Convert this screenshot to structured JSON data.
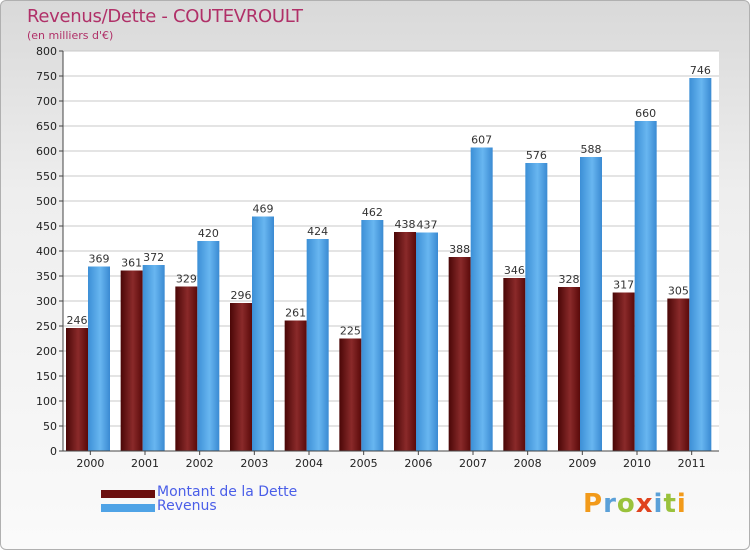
{
  "title": "Revenus/Dette - COUTEVROULT",
  "subtitle": "(en milliers d'€)",
  "chart_data": {
    "type": "bar",
    "title": "Revenus/Dette - COUTEVROULT",
    "ylabel": "(en milliers d'€)",
    "xlabel": "",
    "categories": [
      "2000",
      "2001",
      "2002",
      "2003",
      "2004",
      "2005",
      "2006",
      "2007",
      "2008",
      "2009",
      "2010",
      "2011"
    ],
    "series": [
      {
        "name": "Montant de la Dette",
        "values": [
          246,
          361,
          329,
          296,
          261,
          225,
          438,
          388,
          346,
          328,
          317,
          305
        ],
        "color": "#6b0e0e"
      },
      {
        "name": "Revenus",
        "values": [
          369,
          372,
          420,
          469,
          424,
          462,
          437,
          607,
          576,
          588,
          660,
          746
        ],
        "color": "#4fa3e6"
      }
    ],
    "ylim": [
      0,
      800
    ],
    "yticks": [
      "0",
      "50",
      "100",
      "150",
      "200",
      "250",
      "300",
      "350",
      "400",
      "450",
      "500",
      "550",
      "600",
      "650",
      "700",
      "750",
      "800"
    ],
    "grid": true,
    "legend": "bottom-left"
  },
  "legend": {
    "items": [
      {
        "label": "Montant de la Dette",
        "color": "#6b0e0e"
      },
      {
        "label": "Revenus",
        "color": "#4fa3e6"
      }
    ]
  },
  "logo": {
    "text": "Proxiti",
    "letters": [
      {
        "ch": "P",
        "color": "#f29a1a"
      },
      {
        "ch": "r",
        "color": "#5aa0d8"
      },
      {
        "ch": "o",
        "color": "#9ac23c"
      },
      {
        "ch": "x",
        "color": "#e0431e"
      },
      {
        "ch": "i",
        "color": "#5aa0d8"
      },
      {
        "ch": "t",
        "color": "#9ac23c"
      },
      {
        "ch": "i",
        "color": "#f29a1a"
      }
    ]
  }
}
